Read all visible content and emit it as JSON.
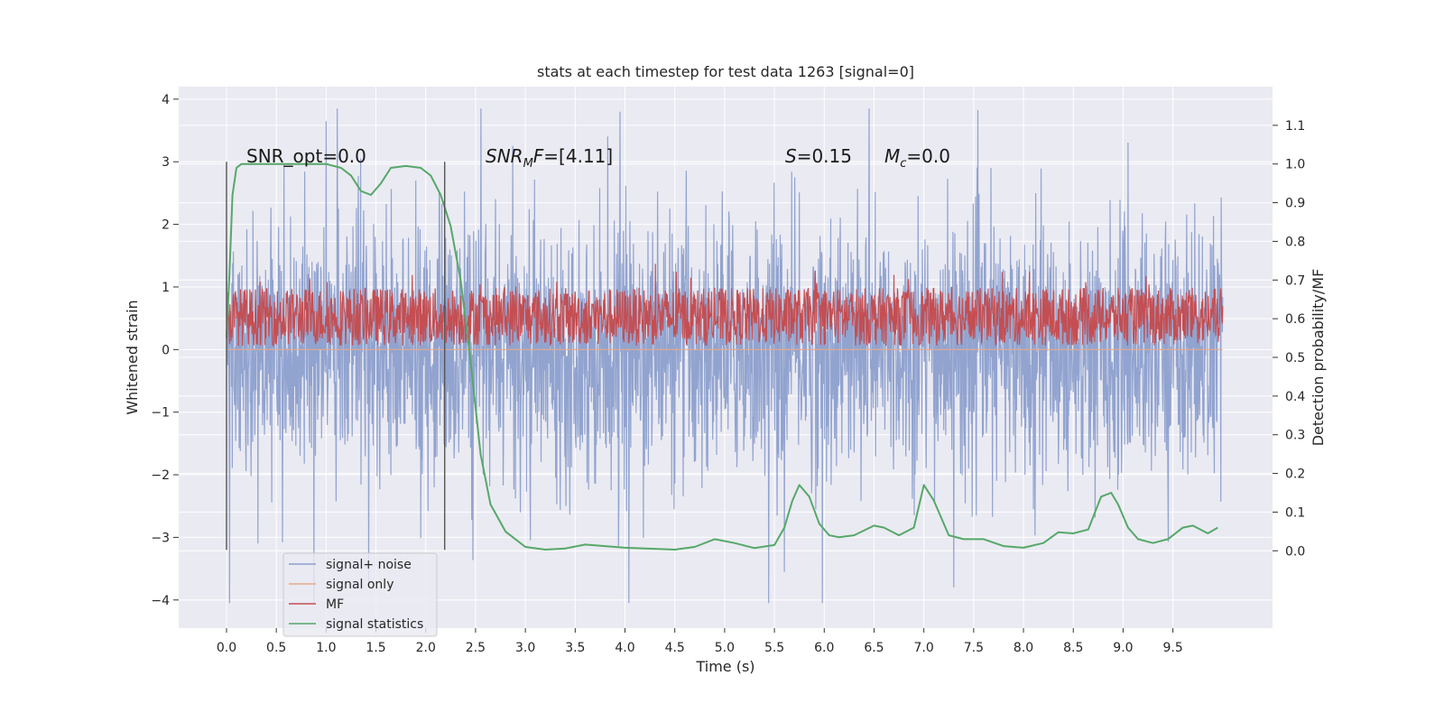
{
  "chart_data": {
    "type": "line",
    "title": "stats at each timestep for test data 1263 [signal=0]",
    "xlabel": "Time (s)",
    "ylabel_left": "Whitened strain",
    "ylabel_right": "Detection probability/MF",
    "xlim": [
      -0.48,
      10.5
    ],
    "ylim_left": [
      -4.45,
      4.2
    ],
    "ylim_right": [
      -0.2,
      1.2
    ],
    "x_ticks": [
      0.0,
      0.5,
      1.0,
      1.5,
      2.0,
      2.5,
      3.0,
      3.5,
      4.0,
      4.5,
      5.0,
      5.5,
      6.0,
      6.5,
      7.0,
      7.5,
      8.0,
      8.5,
      9.0,
      9.5
    ],
    "x_tick_labels": [
      "0.0",
      "0.5",
      "1.0",
      "1.5",
      "2.0",
      "2.5",
      "3.0",
      "3.5",
      "4.0",
      "4.5",
      "5.0",
      "5.5",
      "6.0",
      "6.5",
      "7.0",
      "7.5",
      "8.0",
      "8.5",
      "9.0",
      "9.5"
    ],
    "y_left_ticks": [
      4,
      3,
      2,
      1,
      0,
      -1,
      -2,
      -3,
      -4
    ],
    "y_left_tick_labels": [
      "4",
      "3",
      "2",
      "1",
      "0",
      "−1",
      "−2",
      "−3",
      "−4"
    ],
    "y_right_ticks": [
      1.1,
      1.0,
      0.9,
      0.8,
      0.7,
      0.6,
      0.5,
      0.4,
      0.3,
      0.2,
      0.1,
      0.0
    ],
    "y_right_tick_labels": [
      "1.1",
      "1.0",
      "0.9",
      "0.8",
      "0.7",
      "0.6",
      "0.5",
      "0.4",
      "0.3",
      "0.2",
      "0.1",
      "0.0"
    ],
    "grid": true,
    "legend_position": "lower-left",
    "annotations": [
      "SNR_opt=0.0",
      "SNR_MF=[4.11]",
      "S=0.15",
      "M_c=0.0"
    ],
    "vertical_markers": [
      {
        "x": 0.0,
        "y_range": [
          -3.2,
          3.0
        ]
      },
      {
        "x": 2.19,
        "y_range": [
          -3.2,
          3.0
        ]
      }
    ],
    "series": [
      {
        "name": "signal+ noise",
        "axis": "left",
        "color": "#8c9fcc",
        "x_range": [
          0.0,
          10.0
        ],
        "amplitude_range": [
          -4.05,
          3.85
        ],
        "peaks": [
          {
            "x": 1.0,
            "y": 3.65
          },
          {
            "x": 3.95,
            "y": 3.8
          },
          {
            "x": 6.45,
            "y": 3.85
          },
          {
            "x": 5.98,
            "y": -4.05
          },
          {
            "x": 7.3,
            "y": -3.8
          },
          {
            "x": 5.6,
            "y": -3.55
          }
        ]
      },
      {
        "name": "signal only",
        "axis": "left",
        "color": "#e8a98a",
        "x": [
          0.0,
          10.0
        ],
        "y": [
          0.0,
          0.0
        ]
      },
      {
        "name": "MF",
        "axis": "right",
        "color": "#c44e52",
        "x_range": [
          0.0,
          10.0
        ],
        "band": [
          0.53,
          0.68
        ]
      },
      {
        "name": "signal statistics",
        "axis": "right",
        "color": "#55a868",
        "x": [
          0.0,
          0.03,
          0.06,
          0.1,
          0.15,
          0.25,
          0.4,
          0.6,
          0.8,
          1.0,
          1.15,
          1.25,
          1.35,
          1.45,
          1.55,
          1.65,
          1.8,
          1.95,
          2.05,
          2.15,
          2.25,
          2.35,
          2.45,
          2.55,
          2.65,
          2.8,
          3.0,
          3.2,
          3.4,
          3.6,
          3.8,
          4.0,
          4.5,
          4.7,
          4.9,
          5.1,
          5.3,
          5.5,
          5.6,
          5.68,
          5.75,
          5.85,
          5.95,
          6.05,
          6.15,
          6.3,
          6.5,
          6.6,
          6.75,
          6.9,
          7.0,
          7.1,
          7.25,
          7.4,
          7.6,
          7.8,
          8.0,
          8.2,
          8.35,
          8.5,
          8.65,
          8.78,
          8.88,
          8.95,
          9.05,
          9.15,
          9.3,
          9.45,
          9.6,
          9.7,
          9.85,
          9.95
        ],
        "y": [
          0.55,
          0.72,
          0.92,
          0.99,
          1.0,
          1.0,
          1.0,
          1.0,
          1.0,
          1.0,
          0.99,
          0.97,
          0.93,
          0.92,
          0.95,
          0.99,
          0.995,
          0.99,
          0.97,
          0.92,
          0.84,
          0.7,
          0.49,
          0.25,
          0.12,
          0.05,
          0.01,
          0.003,
          0.006,
          0.016,
          0.012,
          0.008,
          0.003,
          0.01,
          0.03,
          0.02,
          0.007,
          0.015,
          0.06,
          0.13,
          0.17,
          0.14,
          0.07,
          0.04,
          0.035,
          0.04,
          0.065,
          0.06,
          0.04,
          0.06,
          0.17,
          0.13,
          0.04,
          0.03,
          0.03,
          0.012,
          0.008,
          0.02,
          0.048,
          0.045,
          0.055,
          0.14,
          0.15,
          0.12,
          0.06,
          0.03,
          0.02,
          0.03,
          0.06,
          0.065,
          0.045,
          0.06
        ]
      }
    ]
  }
}
